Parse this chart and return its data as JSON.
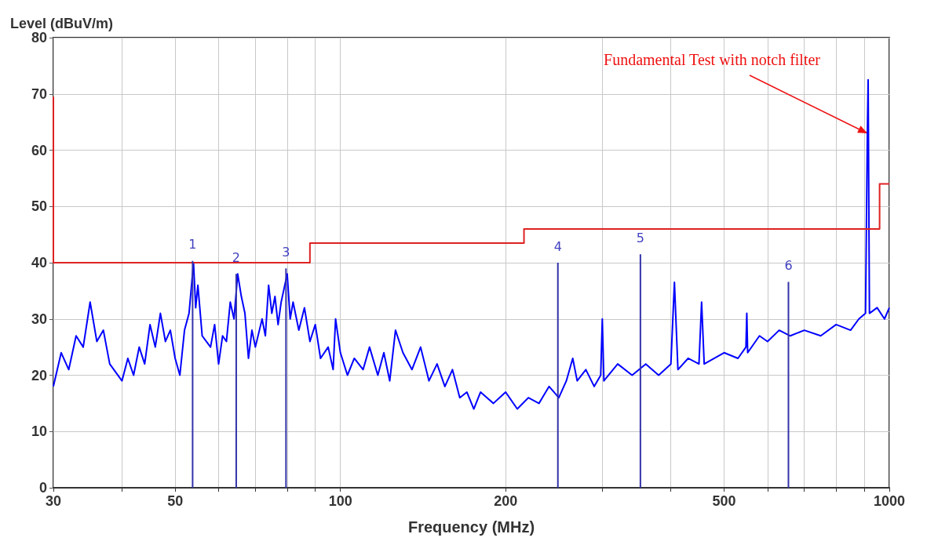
{
  "chart_data": {
    "type": "line",
    "xlabel": "Frequency (MHz)",
    "ylabel": "Level (dBuV/m)",
    "log": "x",
    "xlim": [
      30,
      1000
    ],
    "xticks": [
      30,
      {
        "value": 40,
        "label": null
      },
      50,
      {
        "value": 60,
        "label": null
      },
      {
        "value": 70,
        "label": null
      },
      {
        "value": 80,
        "label": null
      },
      {
        "value": 90,
        "label": null
      },
      100,
      200,
      {
        "value": 300,
        "label": null
      },
      {
        "value": 400,
        "label": null
      },
      500,
      {
        "value": 600,
        "label": null
      },
      {
        "value": 700,
        "label": null
      },
      {
        "value": 800,
        "label": null
      },
      {
        "value": 900,
        "label": null
      },
      1000
    ],
    "ylim": [
      0,
      80
    ],
    "yticks": [
      0,
      10,
      20,
      30,
      40,
      50,
      60,
      70,
      80
    ],
    "grid": true,
    "marker": "none",
    "series": [
      {
        "color": "#0000ff",
        "x": [
          30,
          31,
          32,
          33,
          34,
          35,
          36,
          37,
          38,
          40,
          41,
          42,
          43,
          44,
          45,
          46,
          47,
          48,
          49,
          50,
          51,
          52,
          53,
          54,
          54.5,
          55,
          56,
          58,
          59,
          60,
          61,
          62,
          63,
          64,
          65,
          66,
          67,
          68,
          69,
          70,
          72,
          73,
          74,
          75,
          76,
          77,
          78,
          80,
          81,
          82,
          84,
          86,
          88,
          90,
          92,
          95,
          97,
          98,
          100,
          103,
          106,
          110,
          113,
          117,
          120,
          123,
          126,
          130,
          135,
          140,
          145,
          150,
          155,
          160,
          165,
          170,
          175,
          180,
          190,
          200,
          210,
          220,
          230,
          240,
          250,
          258,
          265,
          270,
          280,
          290,
          298,
          300,
          302,
          320,
          340,
          360,
          380,
          400,
          406,
          412,
          430,
          450,
          455,
          460,
          500,
          530,
          548,
          550,
          552,
          580,
          600,
          630,
          660,
          700,
          750,
          800,
          850,
          880,
          905,
          912,
          915,
          920,
          950,
          980,
          1000
        ],
        "values": [
          18,
          24,
          21,
          27,
          25,
          33,
          26,
          28,
          22,
          19,
          23,
          20,
          25,
          22,
          29,
          25,
          31,
          26,
          28,
          23,
          20,
          28,
          31,
          40,
          32,
          36,
          27,
          25,
          29,
          22,
          27,
          26,
          33,
          30,
          38,
          34,
          31,
          23,
          28,
          25,
          30,
          27,
          36,
          31,
          34,
          29,
          33,
          38,
          30,
          33,
          28,
          32,
          26,
          29,
          23,
          25,
          21,
          30,
          24,
          20,
          23,
          21,
          25,
          20,
          24,
          19,
          28,
          24,
          21,
          25,
          19,
          22,
          18,
          21,
          16,
          17,
          14,
          17,
          15,
          17,
          14,
          16,
          15,
          18,
          16,
          19,
          23,
          19,
          21,
          18,
          20,
          30,
          19,
          22,
          20,
          22,
          20,
          22,
          36.5,
          21,
          23,
          22,
          33,
          22,
          24,
          23,
          25,
          31,
          24,
          27,
          26,
          28,
          27,
          28,
          27,
          29,
          28,
          30,
          31,
          63,
          72.5,
          31,
          32,
          30,
          32
        ]
      },
      {
        "color": "#dd2222",
        "x": [
          30,
          30,
          88,
          88,
          216,
          216,
          960,
          960,
          1000
        ],
        "values": [
          69.5,
          40,
          40,
          43.5,
          43.5,
          46,
          46,
          54,
          54
        ]
      },
      {
        "color": "#3333aa",
        "x": [
          53.8,
          53.8,
          null,
          64.6,
          64.6,
          null,
          79.6,
          79.6,
          null,
          249,
          249,
          null,
          352,
          352,
          null,
          655,
          655
        ],
        "values": [
          0,
          40.3,
          null,
          0,
          38,
          null,
          0,
          39,
          null,
          0,
          40,
          null,
          0,
          41.5,
          null,
          0,
          36.6
        ]
      }
    ],
    "annotations": [
      {
        "text": "1",
        "x": 53.8,
        "y": 40.3
      },
      {
        "text": "2",
        "x": 64.6,
        "y": 38
      },
      {
        "text": "3",
        "x": 79.6,
        "y": 39
      },
      {
        "text": "4",
        "x": 249,
        "y": 40
      },
      {
        "text": "5",
        "x": 352,
        "y": 41.5
      },
      {
        "text": "6",
        "x": 655,
        "y": 36.6
      },
      {
        "text": "Fundamental Test with notch filter",
        "x": 912,
        "y": 63
      }
    ]
  }
}
